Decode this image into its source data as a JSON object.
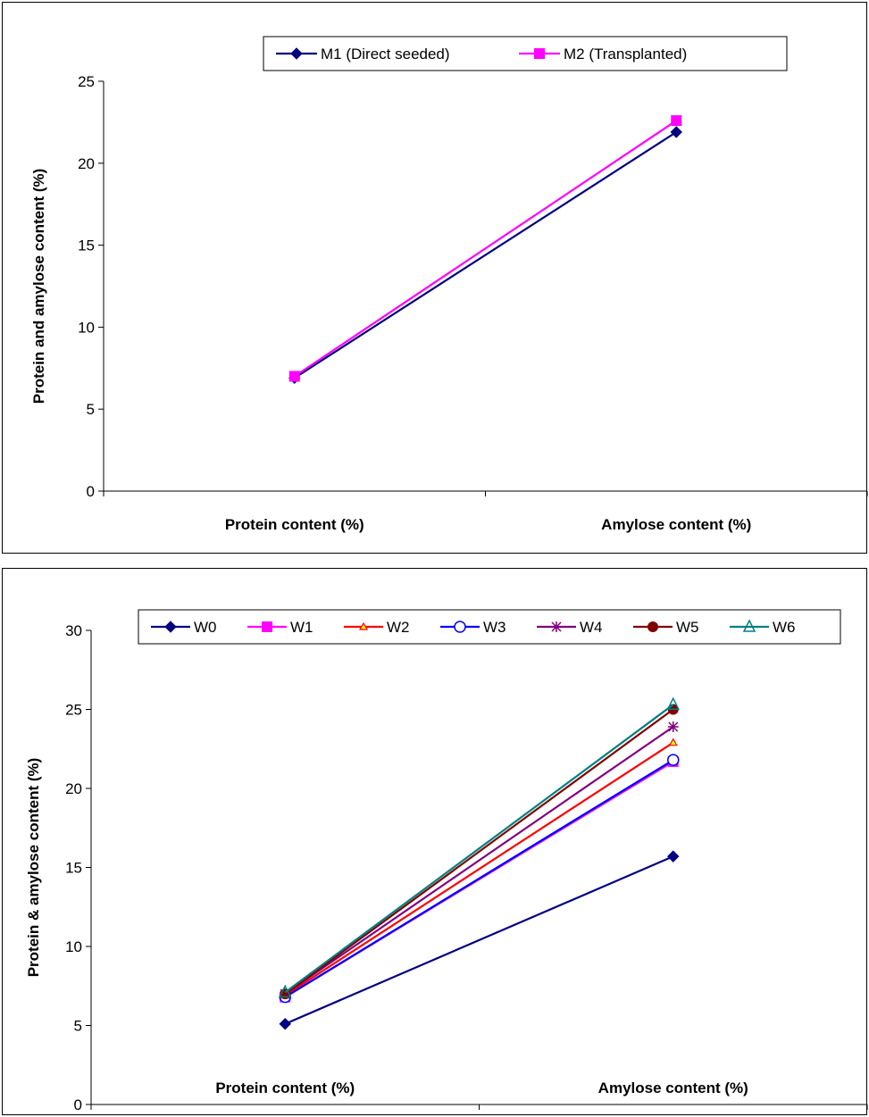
{
  "charts": [
    {
      "type": "line",
      "categories": [
        "Protein content (%)",
        "Amylose content (%)"
      ],
      "ylabel": "Protein and amylose content (%)",
      "ylim": [
        0,
        25
      ],
      "yticks": [
        0,
        5,
        10,
        15,
        20,
        25
      ],
      "grid": false,
      "legend_position": "top",
      "series": [
        {
          "name": "M1 (Direct seeded)",
          "values": [
            6.9,
            21.9
          ],
          "color": "#000080",
          "marker": "diamond"
        },
        {
          "name": "M2 (Transplanted)",
          "values": [
            7.0,
            22.6
          ],
          "color": "#FF00FF",
          "marker": "square"
        }
      ]
    },
    {
      "type": "line",
      "categories": [
        "Protein content (%)",
        "Amylose content (%)"
      ],
      "ylabel": "Protein & amylose content (%)",
      "ylim": [
        0,
        30
      ],
      "yticks": [
        0,
        5,
        10,
        15,
        20,
        25,
        30
      ],
      "grid": false,
      "legend_position": "top",
      "series": [
        {
          "name": "W0",
          "values": [
            5.1,
            15.7
          ],
          "color": "#000080",
          "marker": "diamond"
        },
        {
          "name": "W1",
          "values": [
            6.8,
            21.7
          ],
          "color": "#FF00FF",
          "marker": "square"
        },
        {
          "name": "W2",
          "values": [
            6.9,
            22.9
          ],
          "color": "#FF0000",
          "marker": "triangle-small"
        },
        {
          "name": "W3",
          "values": [
            6.8,
            21.8
          ],
          "color": "#0000FF",
          "marker": "circle-open"
        },
        {
          "name": "W4",
          "values": [
            7.0,
            23.9
          ],
          "color": "#800080",
          "marker": "star"
        },
        {
          "name": "W5",
          "values": [
            7.0,
            25.0
          ],
          "color": "#800000",
          "marker": "circle"
        },
        {
          "name": "W6",
          "values": [
            7.1,
            25.3
          ],
          "color": "#008080",
          "marker": "triangle-open"
        }
      ]
    }
  ]
}
